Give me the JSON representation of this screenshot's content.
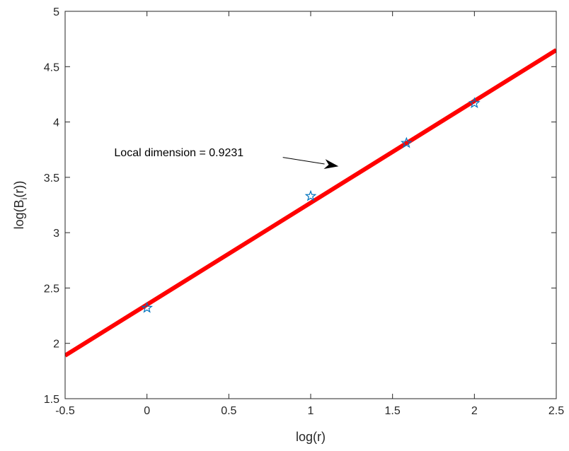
{
  "chart_data": {
    "type": "scatter",
    "title": "",
    "xlabel": "log(r)",
    "ylabel": {
      "prefix": "log(B",
      "subscript": "i",
      "suffix": "(r))"
    },
    "xlim": [
      -0.5,
      2.5
    ],
    "ylim": [
      1.5,
      5
    ],
    "xticks": [
      -0.5,
      0,
      0.5,
      1,
      1.5,
      2,
      2.5
    ],
    "xtick_labels": [
      "-0.5",
      "0",
      "0.5",
      "1",
      "1.5",
      "2",
      "2.5"
    ],
    "yticks": [
      1.5,
      2,
      2.5,
      3,
      3.5,
      4,
      4.5,
      5
    ],
    "ytick_labels": [
      "1.5",
      "2",
      "2.5",
      "3",
      "3.5",
      "4",
      "4.5",
      "5"
    ],
    "grid": false,
    "legend": "none",
    "series": [
      {
        "type": "scatter",
        "marker": "pentagram",
        "color": "#0072BD",
        "x": [
          0,
          1,
          1.585,
          2
        ],
        "y": [
          2.32,
          3.33,
          3.81,
          4.17
        ]
      },
      {
        "type": "line",
        "color": "#FF0000",
        "x": [
          -0.5,
          2.5
        ],
        "y": [
          1.89,
          4.65
        ]
      }
    ],
    "annotations": [
      {
        "text": "Local dimension = 0.9231",
        "text_at": [
          -0.2,
          3.69
        ],
        "arrow_from": [
          0.83,
          3.68
        ],
        "arrow_to": [
          1.17,
          3.6
        ]
      }
    ]
  }
}
